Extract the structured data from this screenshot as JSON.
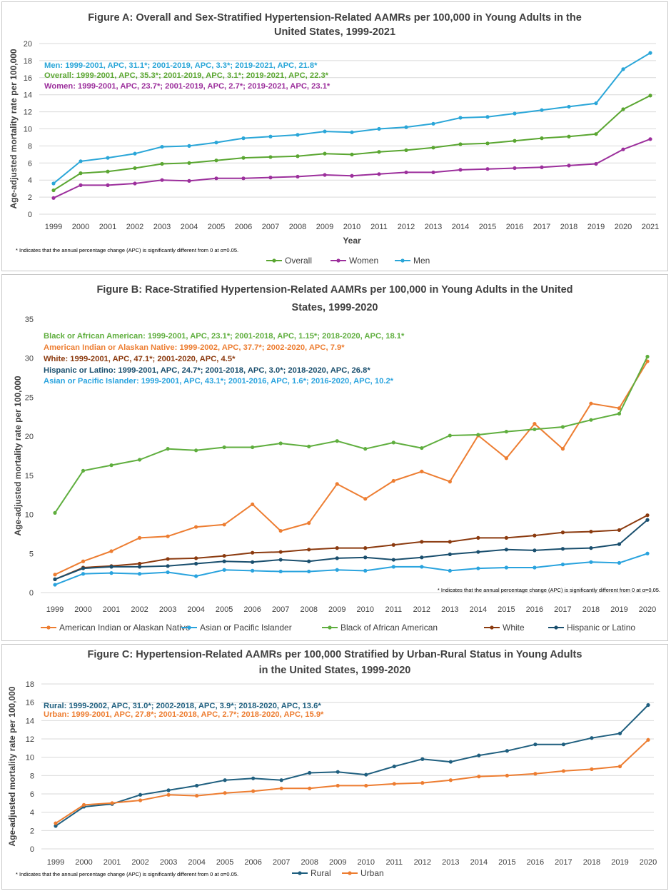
{
  "chart_data": [
    {
      "id": "A",
      "type": "line",
      "title_lines": [
        "Figure A: Overall and Sex-Stratified Hypertension-Related AAMRs per 100,000 in Young Adults in the",
        "United States, 1999-2021"
      ],
      "xlabel": "Year",
      "ylabel": "Age-adjusted mortality rate per 100,000",
      "categories": [
        "1999",
        "2000",
        "2001",
        "2002",
        "2003",
        "2004",
        "2005",
        "2006",
        "2007",
        "2008",
        "2009",
        "2010",
        "2011",
        "2012",
        "2013",
        "2014",
        "2015",
        "2016",
        "2017",
        "2018",
        "2019",
        "2020",
        "2021"
      ],
      "ylim": [
        0,
        20
      ],
      "yticks": [
        "0",
        "2",
        "4",
        "6",
        "8",
        "10",
        "12",
        "14",
        "16",
        "18",
        "20"
      ],
      "grid": true,
      "series": [
        {
          "name": "Overall",
          "color": "#5aa631",
          "values": [
            2.8,
            4.8,
            5.0,
            5.4,
            5.9,
            6.0,
            6.3,
            6.6,
            6.7,
            6.8,
            7.1,
            7.0,
            7.3,
            7.5,
            7.8,
            8.2,
            8.3,
            8.6,
            8.9,
            9.1,
            9.4,
            12.3,
            13.9
          ]
        },
        {
          "name": "Women",
          "color": "#9c2f9c",
          "values": [
            1.9,
            3.4,
            3.4,
            3.6,
            4.0,
            3.9,
            4.2,
            4.2,
            4.3,
            4.4,
            4.6,
            4.5,
            4.7,
            4.9,
            4.9,
            5.2,
            5.3,
            5.4,
            5.5,
            5.7,
            5.9,
            7.6,
            8.8
          ]
        },
        {
          "name": "Men",
          "color": "#2aa6d8",
          "values": [
            3.6,
            6.2,
            6.6,
            7.1,
            7.9,
            8.0,
            8.4,
            8.9,
            9.1,
            9.3,
            9.7,
            9.6,
            10.0,
            10.2,
            10.6,
            11.3,
            11.4,
            11.8,
            12.2,
            12.6,
            13.0,
            17.0,
            18.9
          ]
        }
      ],
      "annotations": [
        {
          "text": "Men: 1999-2001, APC, 31.1*; 2001-2019, APC, 3.3*; 2019-2021, APC, 21.8*",
          "color": "#2aa6d8"
        },
        {
          "text": "Overall: 1999-2001, APC, 35.3*; 2001-2019, APC, 3.1*; 2019-2021, APC, 22.3*",
          "color": "#5aa631"
        },
        {
          "text": "Women: 1999-2001, APC, 23.7*; 2001-2019, APC, 2.7*; 2019-2021, APC, 23.1*",
          "color": "#9c2f9c"
        }
      ],
      "footnote": "* Indicates that the annual percentage change (APC) is significantly different from 0 at α=0.05.",
      "legend_order": [
        "Overall",
        "Women",
        "Men"
      ]
    },
    {
      "id": "B",
      "type": "line",
      "title_lines": [
        "Figure B: Race-Stratified Hypertension-Related AAMRs per 100,000 in Young Adults in the United",
        "States, 1999-2020"
      ],
      "xlabel": "",
      "ylabel": "Age-adjusted mortality rate per 100,000",
      "categories": [
        "1999",
        "2000",
        "2001",
        "2002",
        "2003",
        "2004",
        "2005",
        "2006",
        "2007",
        "2008",
        "2009",
        "2010",
        "2011",
        "2012",
        "2013",
        "2014",
        "2015",
        "2016",
        "2017",
        "2018",
        "2019",
        "2020"
      ],
      "ylim": [
        0,
        35
      ],
      "yticks": [
        "0",
        "5",
        "10",
        "15",
        "20",
        "25",
        "30",
        "35"
      ],
      "grid": false,
      "series": [
        {
          "name": "American Indian or Alaskan Native",
          "color": "#ed7d31",
          "values": [
            2.3,
            4.0,
            5.3,
            7.0,
            7.2,
            8.4,
            8.7,
            11.3,
            7.9,
            8.9,
            13.9,
            12.0,
            14.3,
            15.5,
            14.2,
            20.1,
            17.2,
            21.6,
            18.4,
            24.2,
            23.6,
            29.6
          ]
        },
        {
          "name": "Asian or Pacific Islander",
          "color": "#29a3de",
          "values": [
            1.0,
            2.4,
            2.5,
            2.4,
            2.6,
            2.1,
            2.9,
            2.8,
            2.7,
            2.7,
            2.9,
            2.8,
            3.3,
            3.3,
            2.8,
            3.1,
            3.2,
            3.2,
            3.6,
            3.9,
            3.8,
            5.0
          ]
        },
        {
          "name": "Black of African American",
          "color": "#5fae3e",
          "values": [
            10.2,
            15.6,
            16.3,
            17.0,
            18.4,
            18.2,
            18.6,
            18.6,
            19.1,
            18.7,
            19.4,
            18.4,
            19.2,
            18.5,
            20.1,
            20.2,
            20.6,
            20.9,
            21.2,
            22.1,
            22.9,
            30.2
          ]
        },
        {
          "name": "White",
          "color": "#8b3a0f",
          "values": [
            1.7,
            3.2,
            3.4,
            3.7,
            4.3,
            4.4,
            4.7,
            5.1,
            5.2,
            5.5,
            5.7,
            5.7,
            6.1,
            6.5,
            6.5,
            7.0,
            7.0,
            7.3,
            7.7,
            7.8,
            8.0,
            9.9
          ]
        },
        {
          "name": "Hispanic or Latino",
          "color": "#1a4f6e",
          "values": [
            1.7,
            3.1,
            3.3,
            3.3,
            3.4,
            3.7,
            4.0,
            3.9,
            4.2,
            4.0,
            4.4,
            4.5,
            4.2,
            4.5,
            4.9,
            5.2,
            5.5,
            5.4,
            5.6,
            5.7,
            6.2,
            9.3
          ]
        }
      ],
      "annotations": [
        {
          "text": "Black or African American: 1999-2001, APC, 23.1*; 2001-2018, APC, 1.15*; 2018-2020, APC, 18.1*",
          "color": "#5fae3e"
        },
        {
          "text": "American Indian or Alaskan Native: 1999-2002, APC, 37.7*; 2002-2020, APC, 7.9*",
          "color": "#ed7d31"
        },
        {
          "text": "White: 1999-2001, APC, 47.1*; 2001-2020, APC, 4.5*",
          "color": "#8b3a0f"
        },
        {
          "text": "Hispanic or Latino: 1999-2001, APC, 24.7*; 2001-2018, APC, 3.0*; 2018-2020, APC, 26.8*",
          "color": "#1a4f6e"
        },
        {
          "text": "Asian or Pacific Islander: 1999-2001, APC, 43.1*; 2001-2016, APC, 1.6*; 2016-2020, APC, 10.2*",
          "color": "#29a3de"
        }
      ],
      "footnote": "* Indicates that the annual percentage change (APC) is significantly different from 0 at α=0.05.",
      "legend_order": [
        "American Indian or Alaskan Native",
        "Asian or Pacific Islander",
        "Black of African American",
        "White",
        "Hispanic or Latino"
      ]
    },
    {
      "id": "C",
      "type": "line",
      "title_lines": [
        "Figure C: Hypertension-Related AAMRs per 100,000 Stratified by Urban-Rural Status in Young Adults",
        "in the United States, 1999-2020"
      ],
      "xlabel": "",
      "ylabel": "Age-adjusted mortality rate per 100,000",
      "categories": [
        "1999",
        "2000",
        "2001",
        "2002",
        "2003",
        "2004",
        "2005",
        "2006",
        "2007",
        "2008",
        "2009",
        "2010",
        "2011",
        "2012",
        "2013",
        "2014",
        "2015",
        "2016",
        "2017",
        "2018",
        "2019",
        "2020"
      ],
      "ylim": [
        0,
        18
      ],
      "yticks": [
        "0",
        "2",
        "4",
        "6",
        "8",
        "10",
        "12",
        "14",
        "16",
        "18"
      ],
      "grid": true,
      "series": [
        {
          "name": "Rural",
          "color": "#1f5f7f",
          "values": [
            2.5,
            4.6,
            4.9,
            5.9,
            6.4,
            6.9,
            7.5,
            7.7,
            7.5,
            8.3,
            8.4,
            8.1,
            9.0,
            9.8,
            9.5,
            10.2,
            10.7,
            11.4,
            11.4,
            12.1,
            12.6,
            15.7
          ]
        },
        {
          "name": "Urban",
          "color": "#ed7d31",
          "values": [
            2.8,
            4.8,
            5.0,
            5.3,
            5.9,
            5.8,
            6.1,
            6.3,
            6.6,
            6.6,
            6.9,
            6.9,
            7.1,
            7.2,
            7.5,
            7.9,
            8.0,
            8.2,
            8.5,
            8.7,
            9.0,
            11.9
          ]
        }
      ],
      "annotations": [
        {
          "text": "Rural: 1999-2002, APC, 31.0*; 2002-2018, APC, 3.9*; 2018-2020, APC, 13.6*",
          "color": "#1f5f7f"
        },
        {
          "text": "Urban: 1999-2001, APC, 27.8*; 2001-2018, APC, 2.7*; 2018-2020, APC, 15.9*",
          "color": "#ed7d31"
        }
      ],
      "footnote": "* Indicates that the annual percentage change (APC) is significantly different from 0 at α=0.05.",
      "legend_order": [
        "Rural",
        "Urban"
      ]
    }
  ]
}
